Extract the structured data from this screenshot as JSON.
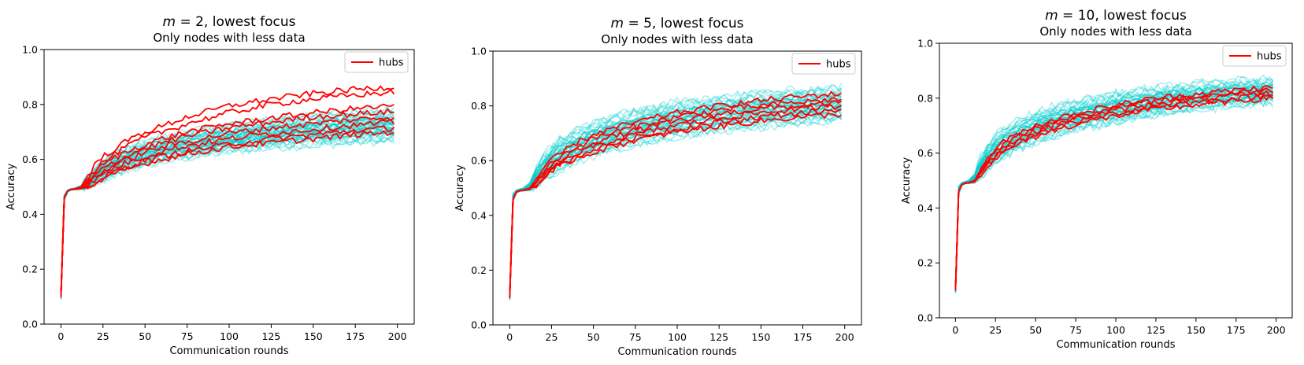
{
  "colors": {
    "hubs": "#ff0000",
    "others": "#00cccc"
  },
  "chart_data": [
    {
      "type": "line",
      "title_var": "m",
      "title_rest": " = 2, lowest focus",
      "subtitle": "Only nodes with less data",
      "xlabel": "Communication rounds",
      "ylabel": "Accuracy",
      "xlim": [
        -10,
        210
      ],
      "ylim": [
        0.0,
        1.0
      ],
      "xticks": [
        0,
        25,
        50,
        75,
        100,
        125,
        150,
        175,
        200
      ],
      "yticks": [
        0.0,
        0.2,
        0.4,
        0.6,
        0.8,
        1.0
      ],
      "legend": {
        "label": "hubs",
        "position": "top-right"
      },
      "x": [
        0,
        1,
        2,
        3,
        5,
        8,
        12,
        16,
        20,
        25,
        30,
        40,
        50,
        60,
        75,
        100,
        125,
        150,
        175,
        199
      ],
      "series": [
        {
          "role": "hubs",
          "values": [
            0.1,
            0.37,
            0.46,
            0.48,
            0.49,
            0.492,
            0.5,
            0.54,
            0.58,
            0.61,
            0.63,
            0.67,
            0.7,
            0.72,
            0.755,
            0.795,
            0.82,
            0.84,
            0.855,
            0.865
          ]
        },
        {
          "role": "hubs",
          "values": [
            0.1,
            0.36,
            0.46,
            0.48,
            0.49,
            0.492,
            0.5,
            0.53,
            0.56,
            0.59,
            0.61,
            0.65,
            0.68,
            0.7,
            0.73,
            0.77,
            0.8,
            0.82,
            0.835,
            0.845
          ]
        },
        {
          "role": "hubs",
          "values": [
            0.1,
            0.36,
            0.46,
            0.48,
            0.49,
            0.492,
            0.498,
            0.52,
            0.55,
            0.58,
            0.6,
            0.63,
            0.655,
            0.675,
            0.7,
            0.73,
            0.75,
            0.77,
            0.785,
            0.795
          ]
        },
        {
          "role": "hubs",
          "values": [
            0.1,
            0.36,
            0.46,
            0.48,
            0.49,
            0.492,
            0.497,
            0.515,
            0.54,
            0.565,
            0.585,
            0.615,
            0.64,
            0.66,
            0.685,
            0.715,
            0.735,
            0.755,
            0.765,
            0.775
          ]
        },
        {
          "role": "hubs",
          "values": [
            0.1,
            0.35,
            0.46,
            0.48,
            0.49,
            0.491,
            0.496,
            0.51,
            0.535,
            0.555,
            0.575,
            0.6,
            0.625,
            0.645,
            0.665,
            0.695,
            0.715,
            0.73,
            0.745,
            0.755
          ]
        },
        {
          "role": "hubs",
          "values": [
            0.1,
            0.35,
            0.46,
            0.48,
            0.49,
            0.491,
            0.495,
            0.505,
            0.525,
            0.545,
            0.565,
            0.59,
            0.61,
            0.63,
            0.65,
            0.675,
            0.695,
            0.71,
            0.725,
            0.735
          ]
        },
        {
          "role": "hubs",
          "values": [
            0.1,
            0.35,
            0.46,
            0.48,
            0.49,
            0.491,
            0.494,
            0.5,
            0.515,
            0.53,
            0.55,
            0.575,
            0.595,
            0.61,
            0.63,
            0.655,
            0.675,
            0.69,
            0.705,
            0.715
          ]
        },
        {
          "role": "hubs",
          "values": [
            0.1,
            0.35,
            0.46,
            0.48,
            0.49,
            0.491,
            0.494,
            0.5,
            0.51,
            0.525,
            0.54,
            0.565,
            0.585,
            0.6,
            0.62,
            0.645,
            0.66,
            0.675,
            0.69,
            0.7
          ]
        }
      ],
      "others_band": {
        "upper": [
          0.11,
          0.39,
          0.47,
          0.485,
          0.492,
          0.495,
          0.505,
          0.535,
          0.565,
          0.595,
          0.615,
          0.645,
          0.665,
          0.68,
          0.7,
          0.725,
          0.745,
          0.76,
          0.775,
          0.78
        ],
        "lower": [
          0.09,
          0.33,
          0.45,
          0.475,
          0.488,
          0.489,
          0.49,
          0.497,
          0.505,
          0.52,
          0.535,
          0.56,
          0.575,
          0.59,
          0.605,
          0.625,
          0.64,
          0.65,
          0.66,
          0.665
        ]
      }
    },
    {
      "type": "line",
      "title_var": "m",
      "title_rest": " = 5, lowest focus",
      "subtitle": "Only nodes with less data",
      "xlabel": "Communication rounds",
      "ylabel": "Accuracy",
      "xlim": [
        -10,
        210
      ],
      "ylim": [
        0.0,
        1.0
      ],
      "xticks": [
        0,
        25,
        50,
        75,
        100,
        125,
        150,
        175,
        200
      ],
      "yticks": [
        0.0,
        0.2,
        0.4,
        0.6,
        0.8,
        1.0
      ],
      "legend": {
        "label": "hubs",
        "position": "top-right"
      },
      "x": [
        0,
        1,
        2,
        3,
        5,
        8,
        12,
        16,
        20,
        25,
        30,
        40,
        50,
        60,
        75,
        100,
        125,
        150,
        175,
        199
      ],
      "series": [
        {
          "role": "hubs",
          "values": [
            0.1,
            0.36,
            0.46,
            0.48,
            0.49,
            0.492,
            0.5,
            0.535,
            0.565,
            0.6,
            0.625,
            0.665,
            0.695,
            0.715,
            0.74,
            0.775,
            0.8,
            0.82,
            0.835,
            0.845
          ]
        },
        {
          "role": "hubs",
          "values": [
            0.1,
            0.36,
            0.46,
            0.48,
            0.49,
            0.492,
            0.498,
            0.53,
            0.56,
            0.59,
            0.615,
            0.65,
            0.68,
            0.7,
            0.725,
            0.76,
            0.785,
            0.8,
            0.815,
            0.825
          ]
        },
        {
          "role": "hubs",
          "values": [
            0.1,
            0.35,
            0.46,
            0.48,
            0.49,
            0.491,
            0.497,
            0.525,
            0.55,
            0.58,
            0.6,
            0.64,
            0.665,
            0.685,
            0.71,
            0.745,
            0.77,
            0.79,
            0.8,
            0.81
          ]
        },
        {
          "role": "hubs",
          "values": [
            0.1,
            0.35,
            0.46,
            0.48,
            0.49,
            0.491,
            0.496,
            0.52,
            0.545,
            0.57,
            0.59,
            0.625,
            0.65,
            0.67,
            0.695,
            0.73,
            0.755,
            0.775,
            0.79,
            0.8
          ]
        },
        {
          "role": "hubs",
          "values": [
            0.1,
            0.35,
            0.46,
            0.48,
            0.49,
            0.491,
            0.495,
            0.515,
            0.54,
            0.565,
            0.585,
            0.615,
            0.64,
            0.66,
            0.685,
            0.715,
            0.74,
            0.76,
            0.775,
            0.785
          ]
        },
        {
          "role": "hubs",
          "values": [
            0.1,
            0.35,
            0.46,
            0.48,
            0.49,
            0.491,
            0.495,
            0.512,
            0.535,
            0.56,
            0.58,
            0.61,
            0.63,
            0.65,
            0.675,
            0.705,
            0.725,
            0.745,
            0.76,
            0.77
          ]
        }
      ],
      "others_band": {
        "upper": [
          0.11,
          0.4,
          0.48,
          0.49,
          0.495,
          0.5,
          0.52,
          0.58,
          0.62,
          0.655,
          0.68,
          0.715,
          0.74,
          0.76,
          0.785,
          0.815,
          0.835,
          0.85,
          0.86,
          0.87
        ],
        "lower": [
          0.09,
          0.33,
          0.45,
          0.475,
          0.488,
          0.489,
          0.49,
          0.505,
          0.525,
          0.545,
          0.565,
          0.595,
          0.615,
          0.635,
          0.655,
          0.685,
          0.705,
          0.72,
          0.735,
          0.745
        ]
      }
    },
    {
      "type": "line",
      "title_var": "m",
      "title_rest": " = 10, lowest focus",
      "subtitle": "Only nodes with less data",
      "xlabel": "Communication rounds",
      "ylabel": "Accuracy",
      "xlim": [
        -10,
        210
      ],
      "ylim": [
        0.0,
        1.0
      ],
      "xticks": [
        0,
        25,
        50,
        75,
        100,
        125,
        150,
        175,
        200
      ],
      "yticks": [
        0.0,
        0.2,
        0.4,
        0.6,
        0.8,
        1.0
      ],
      "legend": {
        "label": "hubs",
        "position": "top-right"
      },
      "x": [
        0,
        1,
        2,
        3,
        5,
        8,
        12,
        16,
        20,
        25,
        30,
        40,
        50,
        60,
        75,
        100,
        125,
        150,
        175,
        199
      ],
      "series": [
        {
          "role": "hubs",
          "values": [
            0.1,
            0.36,
            0.46,
            0.48,
            0.49,
            0.492,
            0.5,
            0.545,
            0.58,
            0.615,
            0.64,
            0.675,
            0.7,
            0.72,
            0.745,
            0.775,
            0.8,
            0.815,
            0.83,
            0.84
          ]
        },
        {
          "role": "hubs",
          "values": [
            0.1,
            0.36,
            0.46,
            0.48,
            0.49,
            0.492,
            0.498,
            0.54,
            0.575,
            0.605,
            0.63,
            0.665,
            0.69,
            0.71,
            0.735,
            0.765,
            0.79,
            0.805,
            0.82,
            0.83
          ]
        },
        {
          "role": "hubs",
          "values": [
            0.1,
            0.35,
            0.46,
            0.48,
            0.49,
            0.491,
            0.497,
            0.535,
            0.565,
            0.595,
            0.62,
            0.655,
            0.68,
            0.7,
            0.725,
            0.755,
            0.78,
            0.795,
            0.81,
            0.82
          ]
        },
        {
          "role": "hubs",
          "values": [
            0.1,
            0.35,
            0.46,
            0.48,
            0.49,
            0.491,
            0.496,
            0.53,
            0.56,
            0.59,
            0.61,
            0.645,
            0.67,
            0.69,
            0.715,
            0.745,
            0.77,
            0.785,
            0.8,
            0.81
          ]
        },
        {
          "role": "hubs",
          "values": [
            0.1,
            0.35,
            0.46,
            0.48,
            0.49,
            0.491,
            0.495,
            0.525,
            0.55,
            0.58,
            0.6,
            0.635,
            0.66,
            0.68,
            0.705,
            0.735,
            0.76,
            0.775,
            0.79,
            0.8
          ]
        }
      ],
      "others_band": {
        "upper": [
          0.11,
          0.4,
          0.48,
          0.49,
          0.495,
          0.5,
          0.525,
          0.59,
          0.63,
          0.665,
          0.69,
          0.725,
          0.75,
          0.77,
          0.79,
          0.82,
          0.84,
          0.855,
          0.865,
          0.87
        ],
        "lower": [
          0.09,
          0.33,
          0.45,
          0.475,
          0.488,
          0.489,
          0.49,
          0.51,
          0.535,
          0.56,
          0.58,
          0.61,
          0.635,
          0.655,
          0.68,
          0.71,
          0.735,
          0.755,
          0.77,
          0.78
        ]
      }
    }
  ]
}
